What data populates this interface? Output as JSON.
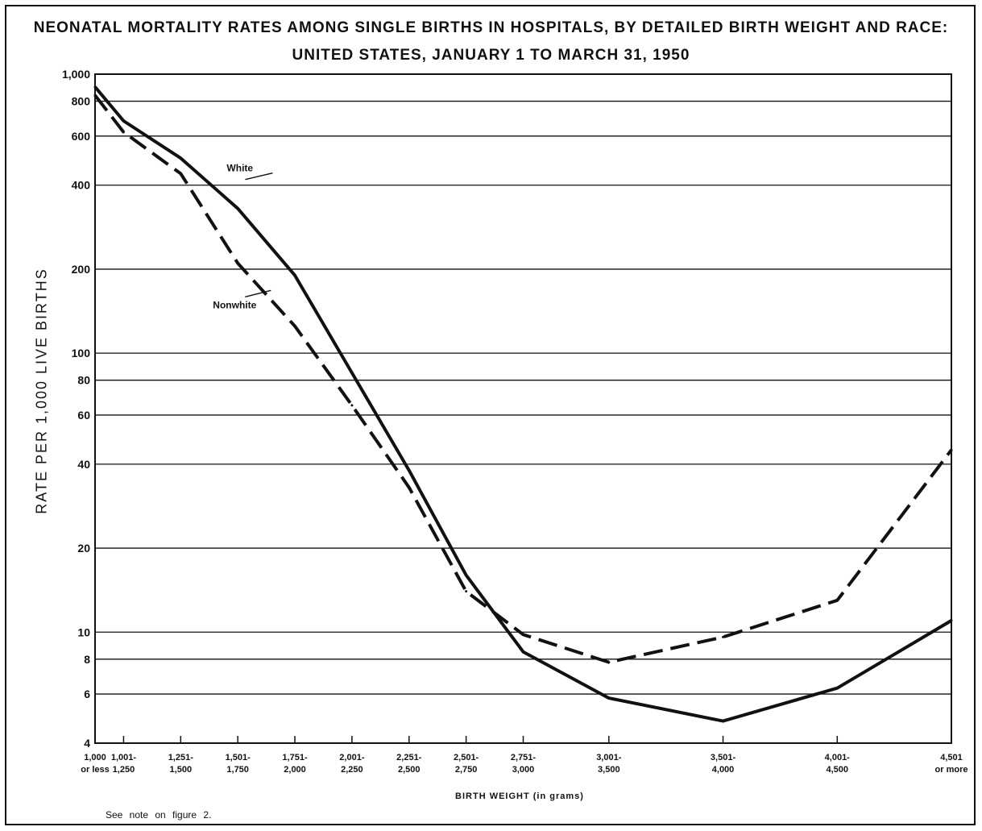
{
  "chart_data": {
    "type": "line",
    "title": "NEONATAL MORTALITY RATES AMONG SINGLE BIRTHS IN HOSPITALS, BY DETAILED BIRTH WEIGHT AND RACE:",
    "subtitle": "UNITED STATES, JANUARY 1 TO MARCH 31, 1950",
    "xlabel": "BIRTH WEIGHT (in grams)",
    "ylabel": "RATE PER 1,000 LIVE BIRTHS",
    "y_scale": "log",
    "ylim": [
      4,
      1000
    ],
    "y_ticks": [
      4,
      6,
      8,
      10,
      20,
      40,
      60,
      80,
      100,
      200,
      400,
      600,
      800,
      1000
    ],
    "y_tick_labels": [
      "4",
      "6",
      "8",
      "10",
      "20",
      "40",
      "60",
      "80",
      "100",
      "200",
      "400",
      "600",
      "800",
      "1,000"
    ],
    "x": [
      1000,
      1125,
      1375,
      1625,
      1875,
      2125,
      2375,
      2625,
      2875,
      3250,
      3750,
      4250,
      4750
    ],
    "x_tick_labels": [
      [
        "1,000",
        "or less"
      ],
      [
        "1,001-",
        "1,250"
      ],
      [
        "1,251-",
        "1,500"
      ],
      [
        "1,501-",
        "1,750"
      ],
      [
        "1,751-",
        "2,000"
      ],
      [
        "2,001-",
        "2,250"
      ],
      [
        "2,251-",
        "2,500"
      ],
      [
        "2,501-",
        "2,750"
      ],
      [
        "2,751-",
        "3,000"
      ],
      [
        "3,001-",
        "3,500"
      ],
      [
        "3,501-",
        "4,000"
      ],
      [
        "4,001-",
        "4,500"
      ],
      [
        "4,501",
        "or more"
      ]
    ],
    "grid": true,
    "series": [
      {
        "name": "White",
        "style": "solid",
        "values": [
          900,
          680,
          500,
          330,
          190,
          85,
          38,
          16,
          8.5,
          5.8,
          4.8,
          6.3,
          11
        ],
        "color": "#111111"
      },
      {
        "name": "Nonwhite",
        "style": "dashed",
        "values": [
          840,
          620,
          440,
          210,
          125,
          65,
          33,
          14,
          9.8,
          7.8,
          9.6,
          13,
          45
        ],
        "color": "#111111"
      }
    ]
  },
  "note": "See note on figure 2."
}
